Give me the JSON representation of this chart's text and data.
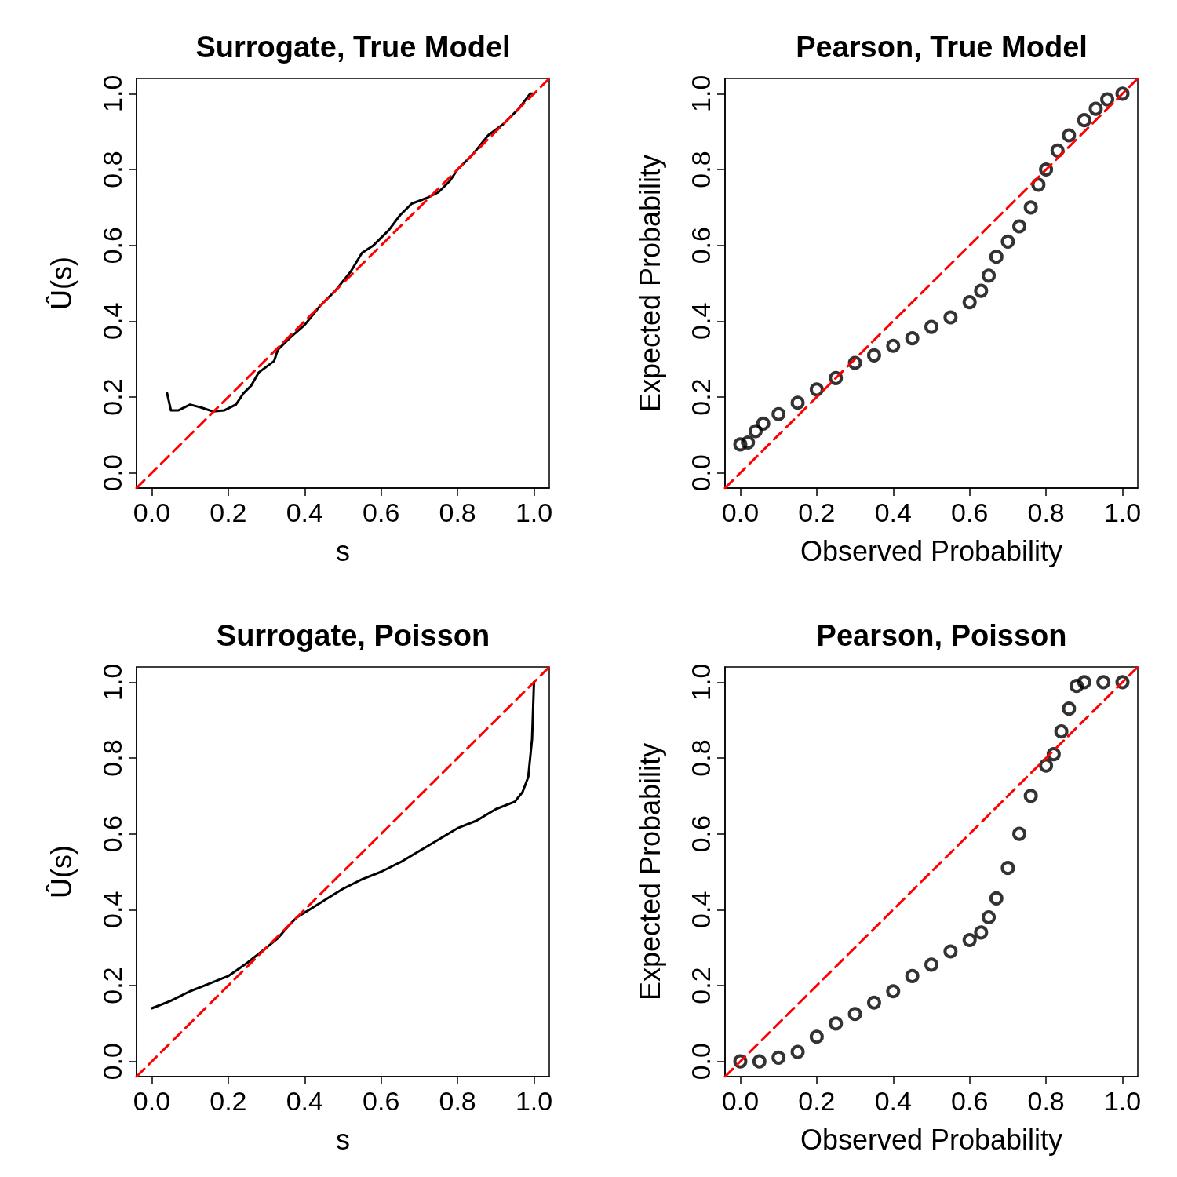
{
  "chart_data": [
    {
      "type": "line",
      "title": "Surrogate, True Model",
      "xlabel": "s",
      "ylabel": "Û(s)",
      "xlim": [
        -0.04,
        1.04
      ],
      "ylim": [
        -0.04,
        1.04
      ],
      "xticks": [
        {
          "value": 0,
          "label": "0.0"
        },
        {
          "value": 0.2,
          "label": "0.2"
        },
        {
          "value": 0.4,
          "label": "0.4"
        },
        {
          "value": 0.6,
          "label": "0.6"
        },
        {
          "value": 0.8,
          "label": "0.8"
        },
        {
          "value": 1,
          "label": "1.0"
        }
      ],
      "yticks": [
        {
          "value": 0,
          "label": "0.0"
        },
        {
          "value": 0.2,
          "label": "0.2"
        },
        {
          "value": 0.4,
          "label": "0.4"
        },
        {
          "value": 0.6,
          "label": "0.6"
        },
        {
          "value": 0.8,
          "label": "0.8"
        },
        {
          "value": 1,
          "label": "1.0"
        }
      ],
      "series": [
        {
          "color": "#000000",
          "line_style": "solid",
          "x": [
            0.04,
            0.05,
            0.07,
            0.1,
            0.13,
            0.16,
            0.19,
            0.22,
            0.24,
            0.26,
            0.28,
            0.3,
            0.32,
            0.33,
            0.36,
            0.4,
            0.44,
            0.48,
            0.52,
            0.55,
            0.58,
            0.62,
            0.65,
            0.68,
            0.72,
            0.75,
            0.78,
            0.8,
            0.84,
            0.88,
            0.92,
            0.96,
            0.99,
            1.0
          ],
          "values": [
            0.21,
            0.165,
            0.165,
            0.18,
            0.172,
            0.162,
            0.165,
            0.18,
            0.21,
            0.23,
            0.265,
            0.28,
            0.295,
            0.325,
            0.355,
            0.39,
            0.44,
            0.48,
            0.53,
            0.58,
            0.6,
            0.64,
            0.68,
            0.71,
            0.725,
            0.74,
            0.77,
            0.8,
            0.84,
            0.89,
            0.92,
            0.96,
            1.0,
            1.0
          ]
        },
        {
          "type": "line",
          "color": "#ff0000",
          "line_style": "dashed",
          "x": [
            -0.04,
            1.04
          ],
          "values": [
            -0.04,
            1.04
          ]
        }
      ]
    },
    {
      "type": "scatter",
      "title": "Pearson, True Model",
      "xlabel": "Observed Probability",
      "ylabel": "Expected Probability",
      "xlim": [
        -0.04,
        1.04
      ],
      "ylim": [
        -0.04,
        1.04
      ],
      "xticks": [
        {
          "value": 0,
          "label": "0.0"
        },
        {
          "value": 0.2,
          "label": "0.2"
        },
        {
          "value": 0.4,
          "label": "0.4"
        },
        {
          "value": 0.6,
          "label": "0.6"
        },
        {
          "value": 0.8,
          "label": "0.8"
        },
        {
          "value": 1,
          "label": "1.0"
        }
      ],
      "yticks": [
        {
          "value": 0,
          "label": "0.0"
        },
        {
          "value": 0.2,
          "label": "0.2"
        },
        {
          "value": 0.4,
          "label": "0.4"
        },
        {
          "value": 0.6,
          "label": "0.6"
        },
        {
          "value": 0.8,
          "label": "0.8"
        },
        {
          "value": 1,
          "label": "1.0"
        }
      ],
      "series": [
        {
          "color": "#000000",
          "marker": "circle",
          "x": [
            0,
            0.02,
            0.04,
            0.06,
            0.1,
            0.15,
            0.2,
            0.25,
            0.3,
            0.35,
            0.4,
            0.45,
            0.5,
            0.55,
            0.6,
            0.63,
            0.65,
            0.67,
            0.7,
            0.73,
            0.76,
            0.78,
            0.8,
            0.83,
            0.86,
            0.9,
            0.93,
            0.96,
            1.0
          ],
          "values": [
            0.075,
            0.08,
            0.11,
            0.13,
            0.155,
            0.185,
            0.22,
            0.25,
            0.29,
            0.31,
            0.335,
            0.355,
            0.385,
            0.41,
            0.45,
            0.48,
            0.52,
            0.57,
            0.61,
            0.65,
            0.7,
            0.76,
            0.8,
            0.85,
            0.89,
            0.93,
            0.96,
            0.985,
            1.0
          ]
        },
        {
          "type": "line",
          "color": "#ff0000",
          "line_style": "dashed",
          "x": [
            -0.04,
            1.04
          ],
          "values": [
            -0.04,
            1.04
          ]
        }
      ]
    },
    {
      "type": "line",
      "title": "Surrogate, Poisson",
      "xlabel": "s",
      "ylabel": "Û(s)",
      "xlim": [
        -0.04,
        1.04
      ],
      "ylim": [
        -0.04,
        1.04
      ],
      "xticks": [
        {
          "value": 0,
          "label": "0.0"
        },
        {
          "value": 0.2,
          "label": "0.2"
        },
        {
          "value": 0.4,
          "label": "0.4"
        },
        {
          "value": 0.6,
          "label": "0.6"
        },
        {
          "value": 0.8,
          "label": "0.8"
        },
        {
          "value": 1,
          "label": "1.0"
        }
      ],
      "yticks": [
        {
          "value": 0,
          "label": "0.0"
        },
        {
          "value": 0.2,
          "label": "0.2"
        },
        {
          "value": 0.4,
          "label": "0.4"
        },
        {
          "value": 0.6,
          "label": "0.6"
        },
        {
          "value": 0.8,
          "label": "0.8"
        },
        {
          "value": 1,
          "label": "1.0"
        }
      ],
      "series": [
        {
          "color": "#000000",
          "line_style": "solid",
          "x": [
            0,
            0.05,
            0.1,
            0.15,
            0.2,
            0.25,
            0.3,
            0.33,
            0.36,
            0.38,
            0.42,
            0.46,
            0.5,
            0.55,
            0.6,
            0.65,
            0.7,
            0.75,
            0.8,
            0.85,
            0.9,
            0.95,
            0.97,
            0.985,
            0.995,
            1.0
          ],
          "values": [
            0.14,
            0.16,
            0.185,
            0.205,
            0.225,
            0.26,
            0.3,
            0.325,
            0.36,
            0.38,
            0.405,
            0.43,
            0.455,
            0.48,
            0.5,
            0.525,
            0.555,
            0.585,
            0.615,
            0.635,
            0.665,
            0.685,
            0.71,
            0.75,
            0.85,
            1.0
          ]
        },
        {
          "type": "line",
          "color": "#ff0000",
          "line_style": "dashed",
          "x": [
            -0.04,
            1.04
          ],
          "values": [
            -0.04,
            1.04
          ]
        }
      ]
    },
    {
      "type": "scatter",
      "title": "Pearson, Poisson",
      "xlabel": "Observed Probability",
      "ylabel": "Expected Probability",
      "xlim": [
        -0.04,
        1.04
      ],
      "ylim": [
        -0.04,
        1.04
      ],
      "xticks": [
        {
          "value": 0,
          "label": "0.0"
        },
        {
          "value": 0.2,
          "label": "0.2"
        },
        {
          "value": 0.4,
          "label": "0.4"
        },
        {
          "value": 0.6,
          "label": "0.6"
        },
        {
          "value": 0.8,
          "label": "0.8"
        },
        {
          "value": 1,
          "label": "1.0"
        }
      ],
      "yticks": [
        {
          "value": 0,
          "label": "0.0"
        },
        {
          "value": 0.2,
          "label": "0.2"
        },
        {
          "value": 0.4,
          "label": "0.4"
        },
        {
          "value": 0.6,
          "label": "0.6"
        },
        {
          "value": 0.8,
          "label": "0.8"
        },
        {
          "value": 1,
          "label": "1.0"
        }
      ],
      "series": [
        {
          "color": "#000000",
          "marker": "circle",
          "x": [
            0,
            0.05,
            0.1,
            0.15,
            0.2,
            0.25,
            0.3,
            0.35,
            0.4,
            0.45,
            0.5,
            0.55,
            0.6,
            0.63,
            0.65,
            0.67,
            0.7,
            0.73,
            0.76,
            0.8,
            0.82,
            0.84,
            0.86,
            0.88,
            0.9,
            0.95,
            1.0
          ],
          "values": [
            0,
            0,
            0.01,
            0.025,
            0.065,
            0.1,
            0.125,
            0.155,
            0.185,
            0.225,
            0.255,
            0.29,
            0.32,
            0.34,
            0.38,
            0.43,
            0.51,
            0.6,
            0.7,
            0.78,
            0.81,
            0.87,
            0.93,
            0.99,
            1.0,
            1.0,
            1.0
          ]
        },
        {
          "type": "line",
          "color": "#ff0000",
          "line_style": "dashed",
          "x": [
            -0.04,
            1.04
          ],
          "values": [
            -0.04,
            1.04
          ]
        }
      ]
    }
  ]
}
